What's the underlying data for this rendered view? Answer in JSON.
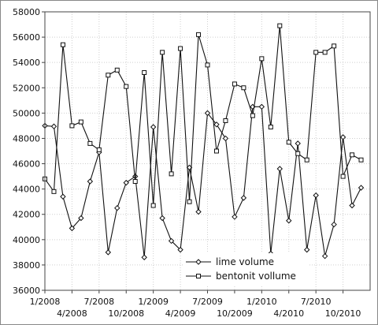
{
  "chart_data": {
    "type": "line",
    "ylim": [
      36000,
      58000
    ],
    "xlim": [
      "2008-01",
      "2011-01"
    ],
    "grid": true,
    "legend_position": "bottom-right",
    "yticks": [
      {
        "value": 36000,
        "label": "36000"
      },
      {
        "value": 38000,
        "label": "38000"
      },
      {
        "value": 40000,
        "label": "40000"
      },
      {
        "value": 42000,
        "label": "42000"
      },
      {
        "value": 44000,
        "label": "44000"
      },
      {
        "value": 46000,
        "label": "46000"
      },
      {
        "value": 48000,
        "label": "48000"
      },
      {
        "value": 50000,
        "label": "50000"
      },
      {
        "value": 52000,
        "label": "52000"
      },
      {
        "value": 54000,
        "label": "54000"
      },
      {
        "value": 56000,
        "label": "56000"
      },
      {
        "value": 58000,
        "label": "58000"
      }
    ],
    "xticks": [
      {
        "value": "2008-01",
        "label": "1/2008",
        "row": 1
      },
      {
        "value": "2008-04",
        "label": "4/2008",
        "row": 2
      },
      {
        "value": "2008-07",
        "label": "7/2008",
        "row": 1
      },
      {
        "value": "2008-10",
        "label": "10/2008",
        "row": 2
      },
      {
        "value": "2009-01",
        "label": "1/2009",
        "row": 1
      },
      {
        "value": "2009-04",
        "label": "4/2009",
        "row": 2
      },
      {
        "value": "2009-07",
        "label": "7/2009",
        "row": 1
      },
      {
        "value": "2009-10",
        "label": "10/2009",
        "row": 2
      },
      {
        "value": "2010-01",
        "label": "1/2010",
        "row": 1
      },
      {
        "value": "2010-04",
        "label": "4/2010",
        "row": 2
      },
      {
        "value": "2010-07",
        "label": "7/2010",
        "row": 1
      },
      {
        "value": "2010-10",
        "label": "10/2010",
        "row": 2
      }
    ],
    "x": [
      "2008-01",
      "2008-02",
      "2008-03",
      "2008-04",
      "2008-05",
      "2008-06",
      "2008-07",
      "2008-08",
      "2008-09",
      "2008-10",
      "2008-11",
      "2008-12",
      "2009-01",
      "2009-02",
      "2009-03",
      "2009-04",
      "2009-05",
      "2009-06",
      "2009-07",
      "2009-08",
      "2009-09",
      "2009-10",
      "2009-11",
      "2009-12",
      "2010-01",
      "2010-02",
      "2010-03",
      "2010-04",
      "2010-05",
      "2010-06",
      "2010-07",
      "2010-08",
      "2010-09",
      "2010-10",
      "2010-11",
      "2010-12"
    ],
    "series": [
      {
        "name": "lime volume",
        "marker": "diamond",
        "values": [
          49000,
          48950,
          43400,
          40900,
          41700,
          44600,
          46900,
          39000,
          42500,
          44500,
          45000,
          38600,
          48900,
          41700,
          39900,
          39200,
          45700,
          42200,
          50000,
          49100,
          48000,
          41800,
          43300,
          50500,
          50500,
          38900,
          45600,
          41500,
          47600,
          39200,
          43500,
          38700,
          41200,
          48100,
          42700,
          44100
        ]
      },
      {
        "name": "bentonit vollume",
        "marker": "square",
        "values": [
          44800,
          43800,
          55400,
          49000,
          49300,
          47600,
          47100,
          53000,
          53400,
          52100,
          44600,
          53200,
          42700,
          54800,
          45200,
          55100,
          43000,
          56200,
          53800,
          47000,
          49400,
          52300,
          52000,
          49800,
          54300,
          48900,
          56900,
          47700,
          46800,
          46300,
          54800,
          54800,
          55300,
          45000,
          46700,
          46300
        ]
      }
    ]
  }
}
